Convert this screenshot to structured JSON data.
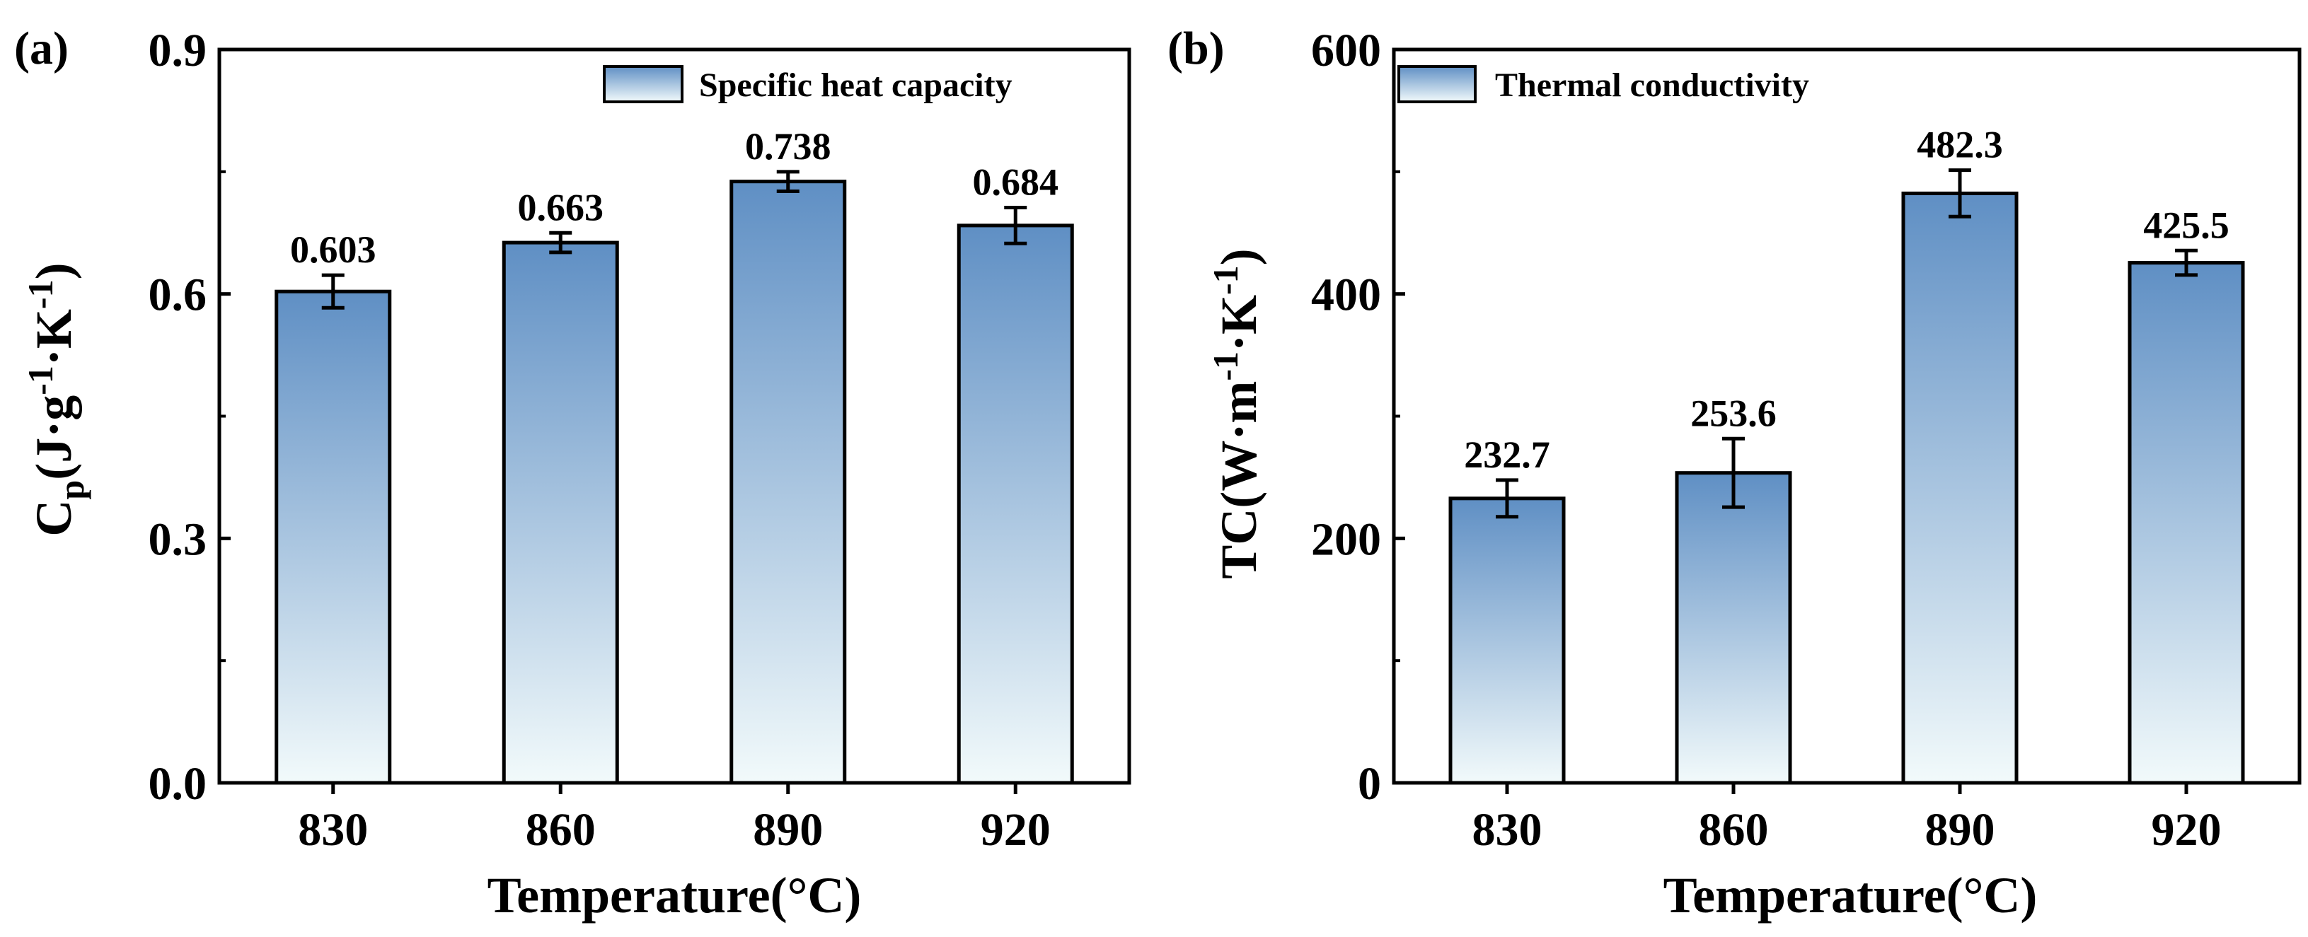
{
  "chart_data": [
    {
      "panel_label": "(a)",
      "type": "bar",
      "categories": [
        "830",
        "860",
        "890",
        "920"
      ],
      "series": [
        {
          "name": "Specific heat capacity",
          "values": [
            0.603,
            0.663,
            0.738,
            0.684
          ],
          "errors": [
            0.02,
            0.012,
            0.012,
            0.022
          ],
          "value_labels": [
            "0.603",
            "0.663",
            "0.738",
            "0.684"
          ]
        }
      ],
      "xlabel": "Temperature(°C)",
      "ylabel": {
        "main": "C",
        "sub": "p",
        "unit_open": "(J·g",
        "exp1": "-1",
        "middle": "·K",
        "exp2": "-1",
        "unit_close": ")"
      },
      "ylim": [
        0,
        0.9
      ],
      "yticks": [
        0,
        0.3,
        0.6,
        0.9
      ],
      "ytick_labels": [
        "0.0",
        "0.3",
        "0.6",
        "0.9"
      ],
      "legend": "top-right",
      "grid": false
    },
    {
      "panel_label": "(b)",
      "type": "bar",
      "categories": [
        "830",
        "860",
        "890",
        "920"
      ],
      "series": [
        {
          "name": "Thermal conductivity",
          "values": [
            232.7,
            253.6,
            482.3,
            425.5
          ],
          "errors": [
            15,
            28,
            19,
            10
          ],
          "value_labels": [
            "232.7",
            "253.6",
            "482.3",
            "425.5"
          ]
        }
      ],
      "xlabel": "Temperature(°C)",
      "ylabel": {
        "main": "TC",
        "unit_open": "(W·m",
        "exp1": "-1",
        "middle": "·K",
        "exp2": "-1",
        "unit_close": ")"
      },
      "ylim": [
        0,
        600
      ],
      "yticks": [
        0,
        200,
        400,
        600
      ],
      "ytick_labels": [
        "0",
        "200",
        "400",
        "600"
      ],
      "legend": "top-left",
      "grid": false
    }
  ],
  "colors": {
    "bar_top": "#5f8fc4",
    "bar_bottom": "#f2fafb",
    "axis": "#000000"
  }
}
